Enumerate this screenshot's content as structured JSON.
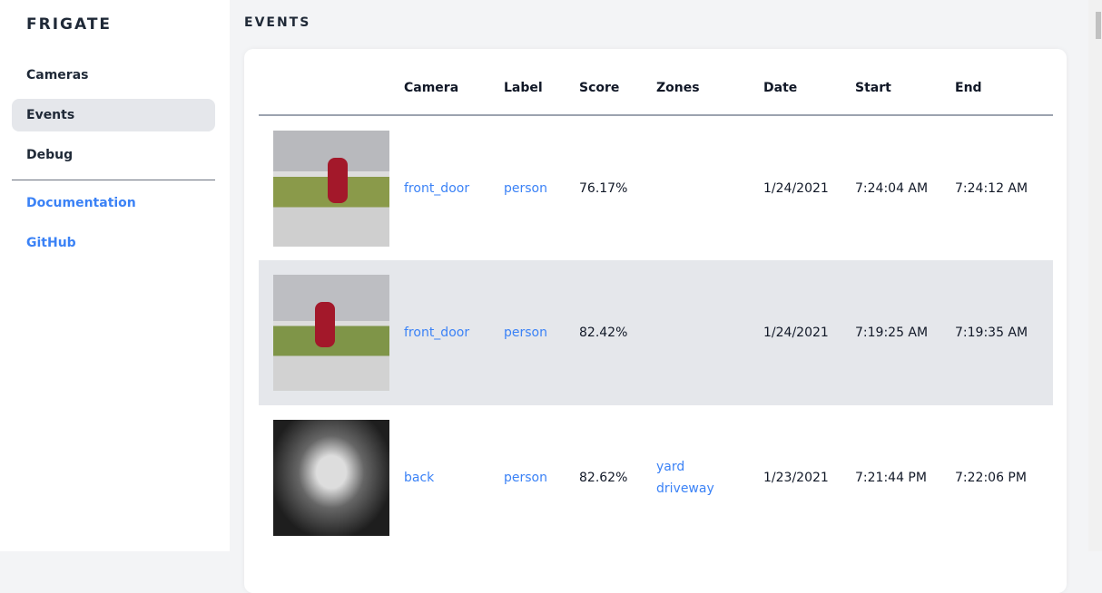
{
  "sidebar": {
    "brand": "FRIGATE",
    "items": [
      {
        "label": "Cameras"
      },
      {
        "label": "Events",
        "active": true
      },
      {
        "label": "Debug"
      }
    ],
    "links": [
      {
        "label": "Documentation"
      },
      {
        "label": "GitHub"
      }
    ]
  },
  "page_title": "EVENTS",
  "table": {
    "headers": [
      "",
      "Camera",
      "Label",
      "Score",
      "Zones",
      "Date",
      "Start",
      "End"
    ],
    "rows": [
      {
        "camera": "front_door",
        "label": "person",
        "score": "76.17%",
        "zones": [
          "",
          ""
        ],
        "date": "1/24/2021",
        "start": "7:24:04 AM",
        "end": "7:24:12 AM"
      },
      {
        "camera": "front_door",
        "label": "person",
        "score": "82.42%",
        "zones": [
          "",
          ""
        ],
        "date": "1/24/2021",
        "start": "7:19:25 AM",
        "end": "7:19:35 AM"
      },
      {
        "camera": "back",
        "label": "person",
        "score": "82.62%",
        "zones": [
          "yard",
          "driveway"
        ],
        "date": "1/23/2021",
        "start": "7:21:44 PM",
        "end": "7:22:06 PM"
      }
    ]
  },
  "colors": {
    "accent": "#3b82f6",
    "active_bg": "#e5e7eb",
    "bg": "#f3f4f6"
  }
}
